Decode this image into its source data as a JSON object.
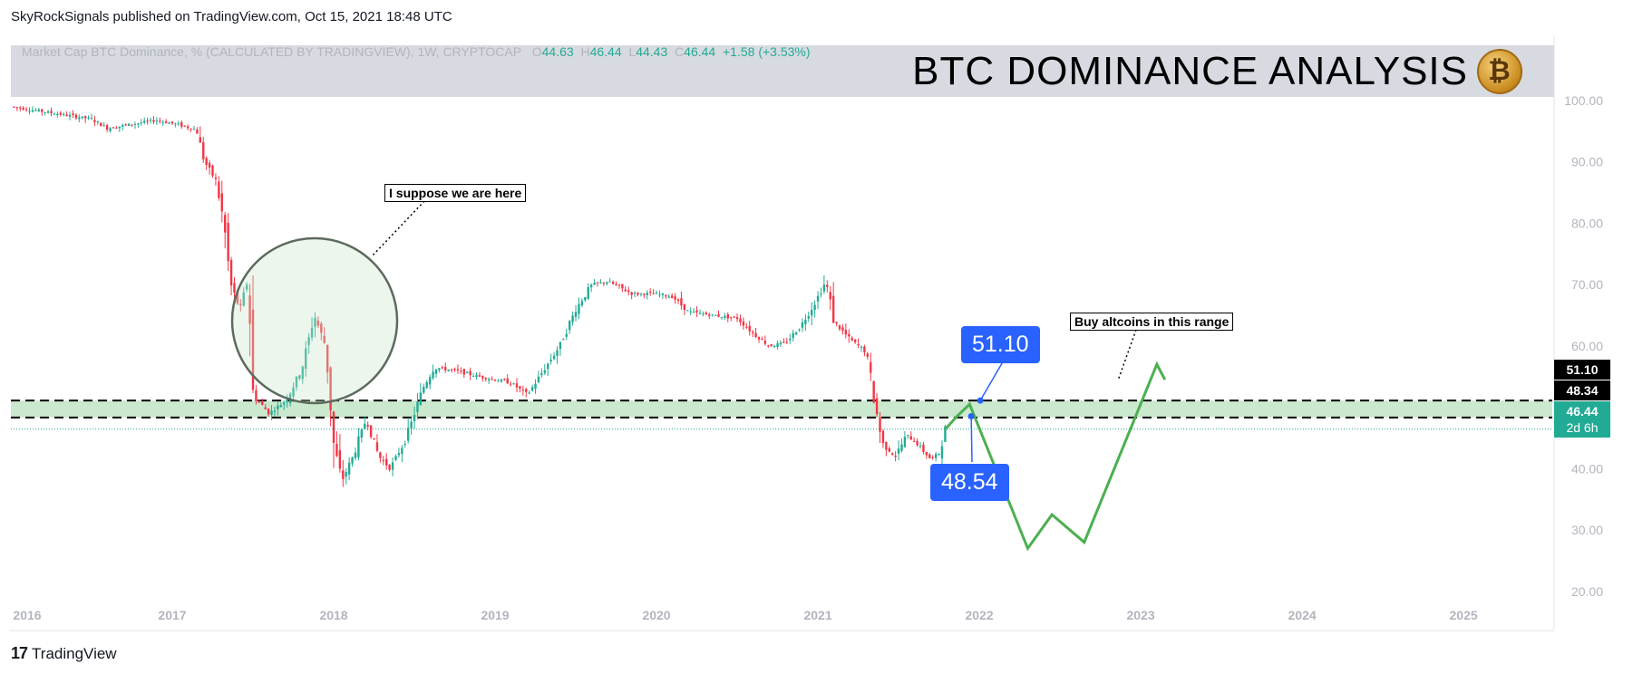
{
  "header": {
    "published": "SkyRockSignals published on TradingView.com, Oct 15, 2021 18:48 UTC"
  },
  "legend": {
    "text": "Market Cap BTC Dominance, % (CALCULATED BY TRADINGVIEW), 1W, CRYPTOCAP",
    "o_label": "O",
    "o": "44.63",
    "h_label": "H",
    "h": "46.44",
    "l_label": "L",
    "l": "44.43",
    "c_label": "C",
    "c": "46.44",
    "change": "+1.58 (+3.53%)"
  },
  "title": "BTC DOMINANCE ANALYSIS",
  "coin_symbol": "₿",
  "annotations": {
    "here": "I suppose we are here",
    "buy": "Buy altcoins in this range",
    "callout_high": "51.10",
    "callout_low": "48.54"
  },
  "price_tags": {
    "upper": "51.10",
    "lower": "48.34",
    "current": "46.44",
    "countdown": "2d 6h"
  },
  "footer": {
    "brand": "TradingView",
    "logo": "17"
  },
  "colors": {
    "up": "#22ab94",
    "down": "#f23645",
    "zone": "#b9e2bf",
    "projection": "#4caf50",
    "callout": "#2962ff"
  },
  "chart_data": {
    "type": "candlestick",
    "symbol": "CRYPTOCAP",
    "interval": "1W",
    "y_ticks": [
      100,
      90,
      80,
      70,
      60,
      40,
      30,
      20
    ],
    "y_tick_labels": [
      "100.00",
      "90.00",
      "80.00",
      "70.00",
      "60.00",
      "40.00",
      "30.00",
      "20.00"
    ],
    "ylim": [
      14.5,
      109
    ],
    "x_ticks": [
      "2016",
      "2017",
      "2018",
      "2019",
      "2020",
      "2021",
      "2022",
      "2023",
      "2024",
      "2025"
    ],
    "xlim": [
      2016.0,
      2025.55
    ],
    "grid": false,
    "zone": [
      48.34,
      51.1
    ],
    "current_price_line": 46.44,
    "price_path": [
      [
        2016.0,
        99.0
      ],
      [
        2016.3,
        97.8
      ],
      [
        2016.5,
        97.0
      ],
      [
        2016.6,
        95.5
      ],
      [
        2016.9,
        96.8
      ],
      [
        2017.05,
        96.0
      ],
      [
        2017.15,
        95.2
      ],
      [
        2017.2,
        90.0
      ],
      [
        2017.27,
        87.0
      ],
      [
        2017.32,
        80.0
      ],
      [
        2017.36,
        70.0
      ],
      [
        2017.42,
        66.0
      ],
      [
        2017.47,
        71.0
      ],
      [
        2017.5,
        52.0
      ],
      [
        2017.6,
        49.0
      ],
      [
        2017.7,
        51.0
      ],
      [
        2017.8,
        56.0
      ],
      [
        2017.88,
        65.0
      ],
      [
        2017.95,
        60.0
      ],
      [
        2018.0,
        44.0
      ],
      [
        2018.05,
        38.0
      ],
      [
        2018.12,
        42.0
      ],
      [
        2018.2,
        48.0
      ],
      [
        2018.28,
        42.0
      ],
      [
        2018.35,
        40.0
      ],
      [
        2018.45,
        45.0
      ],
      [
        2018.55,
        53.0
      ],
      [
        2018.62,
        56.5
      ],
      [
        2018.75,
        56.0
      ],
      [
        2018.9,
        55.0
      ],
      [
        2019.1,
        54.0
      ],
      [
        2019.2,
        52.0
      ],
      [
        2019.3,
        56.0
      ],
      [
        2019.4,
        60.0
      ],
      [
        2019.5,
        66.0
      ],
      [
        2019.6,
        70.0
      ],
      [
        2019.7,
        70.5
      ],
      [
        2019.85,
        68.5
      ],
      [
        2020.0,
        68.5
      ],
      [
        2020.1,
        68.0
      ],
      [
        2020.2,
        65.5
      ],
      [
        2020.35,
        65.0
      ],
      [
        2020.5,
        64.5
      ],
      [
        2020.6,
        62.0
      ],
      [
        2020.7,
        60.0
      ],
      [
        2020.8,
        60.5
      ],
      [
        2020.9,
        63.5
      ],
      [
        2021.0,
        68.0
      ],
      [
        2021.05,
        70.5
      ],
      [
        2021.1,
        64.0
      ],
      [
        2021.2,
        61.0
      ],
      [
        2021.3,
        59.0
      ],
      [
        2021.35,
        51.0
      ],
      [
        2021.4,
        44.0
      ],
      [
        2021.48,
        42.0
      ],
      [
        2021.55,
        45.5
      ],
      [
        2021.6,
        44.5
      ],
      [
        2021.7,
        41.5
      ],
      [
        2021.75,
        42.5
      ],
      [
        2021.79,
        46.44
      ]
    ],
    "projection": [
      [
        2021.79,
        46.44
      ],
      [
        2021.86,
        48.5
      ],
      [
        2021.94,
        50.5
      ],
      [
        2022.3,
        27.0
      ],
      [
        2022.45,
        32.5
      ],
      [
        2022.65,
        28.0
      ],
      [
        2023.1,
        57.0
      ],
      [
        2023.15,
        54.5
      ]
    ],
    "measure": {
      "from": 48.54,
      "to": 51.1
    }
  }
}
